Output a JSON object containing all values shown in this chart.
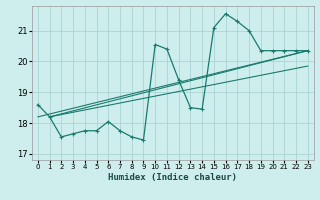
{
  "xlabel": "Humidex (Indice chaleur)",
  "background_color": "#ceeeed",
  "grid_color": "#aad4d3",
  "line_color": "#1a7a6e",
  "xlim": [
    -0.5,
    23.5
  ],
  "ylim": [
    16.8,
    21.8
  ],
  "yticks": [
    17,
    18,
    19,
    20,
    21
  ],
  "xticks": [
    0,
    1,
    2,
    3,
    4,
    5,
    6,
    7,
    8,
    9,
    10,
    11,
    12,
    13,
    14,
    15,
    16,
    17,
    18,
    19,
    20,
    21,
    22,
    23
  ],
  "series1_x": [
    0,
    1,
    2,
    3,
    4,
    5,
    6,
    7,
    8,
    9,
    10,
    11,
    12,
    13,
    14,
    15,
    16,
    17,
    18,
    19,
    20,
    21,
    22,
    23
  ],
  "series1_y": [
    18.6,
    18.2,
    17.55,
    17.65,
    17.75,
    17.75,
    18.05,
    17.75,
    17.55,
    17.45,
    20.55,
    20.4,
    19.4,
    18.5,
    18.45,
    21.1,
    21.55,
    21.3,
    21.0,
    20.35,
    20.35,
    20.35,
    20.35,
    20.35
  ],
  "trend1_x": [
    1,
    23
  ],
  "trend1_y": [
    18.2,
    20.35
  ],
  "trend2_x": [
    1,
    23
  ],
  "trend2_y": [
    18.2,
    19.85
  ],
  "trend3_x": [
    0,
    23
  ],
  "trend3_y": [
    18.2,
    20.35
  ]
}
